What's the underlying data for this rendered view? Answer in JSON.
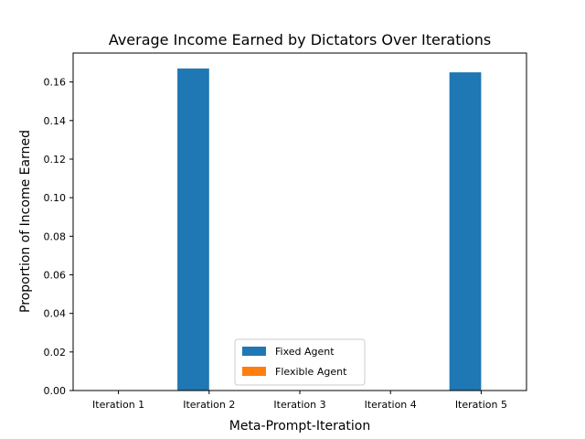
{
  "chart_data": {
    "type": "bar",
    "title": "Average Income Earned by Dictators Over Iterations",
    "xlabel": "Meta-Prompt-Iteration",
    "ylabel": "Proportion of Income Earned",
    "categories": [
      "Iteration 1",
      "Iteration 2",
      "Iteration 3",
      "Iteration 4",
      "Iteration 5"
    ],
    "series": [
      {
        "name": "Fixed Agent",
        "color": "#1f77b4",
        "values": [
          0,
          0.167,
          0,
          0,
          0.165
        ]
      },
      {
        "name": "Flexible Agent",
        "color": "#ff7f0e",
        "values": [
          0,
          0,
          0,
          0,
          0
        ]
      }
    ],
    "ylim": [
      0,
      0.175
    ],
    "yticks": [
      0,
      0.02,
      0.04,
      0.06,
      0.08,
      0.1,
      0.12,
      0.14,
      0.16
    ],
    "ytick_labels": [
      "0.00",
      "0.02",
      "0.04",
      "0.06",
      "0.08",
      "0.10",
      "0.12",
      "0.14",
      "0.16"
    ],
    "grid": false,
    "legend_position": "lower-center"
  }
}
